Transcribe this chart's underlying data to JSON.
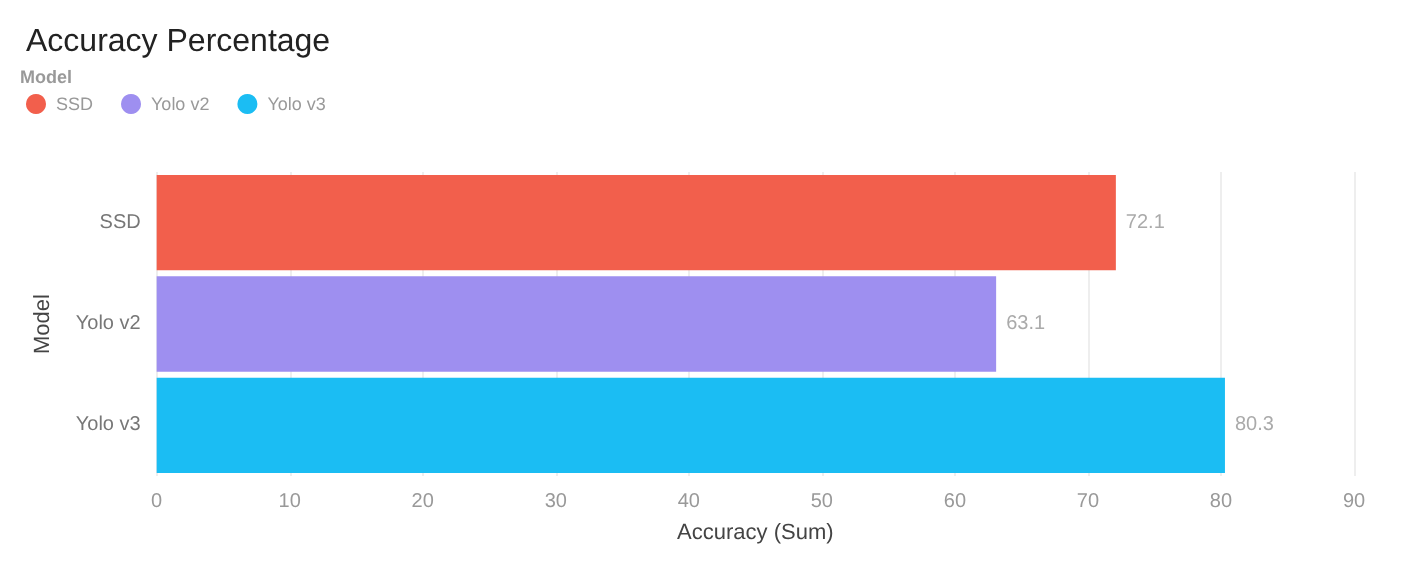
{
  "chart_data": {
    "type": "bar",
    "orientation": "horizontal",
    "stacked": true,
    "title": "Accuracy Percentage",
    "legend_title": "Model",
    "xlabel": "Accuracy (Sum)",
    "ylabel": "Model",
    "categories": [
      "SSD",
      "Yolo v2",
      "Yolo v3"
    ],
    "series": [
      {
        "name": "SSD",
        "color": "#f25f4c",
        "values": [
          72.1,
          null,
          null
        ]
      },
      {
        "name": "Yolo v2",
        "color": "#9e8ff0",
        "values": [
          null,
          63.1,
          null
        ]
      },
      {
        "name": "Yolo v3",
        "color": "#1bbdf3",
        "values": [
          null,
          null,
          80.3
        ]
      }
    ],
    "xlim": [
      0,
      90
    ],
    "xticks": [
      0,
      10,
      20,
      30,
      40,
      50,
      60,
      70,
      80,
      90
    ],
    "grid": "x",
    "legend": "top left",
    "data_labels": true
  }
}
